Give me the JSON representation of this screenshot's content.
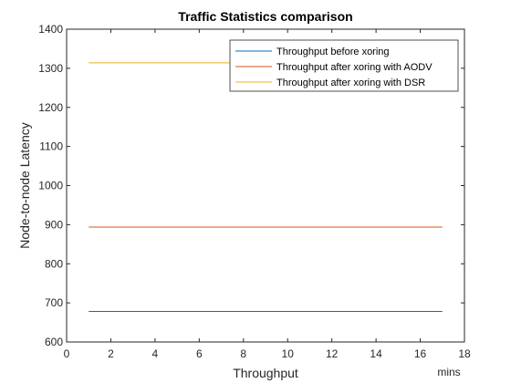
{
  "chart_data": {
    "type": "line",
    "title": "Traffic Statistics comparison",
    "xlabel": "Throughput",
    "ylabel": "Node-to-node Latency",
    "x_unit_label": "mins",
    "xlim": [
      0,
      18
    ],
    "ylim": [
      600,
      1400
    ],
    "xticks": [
      0,
      2,
      4,
      6,
      8,
      10,
      12,
      14,
      16,
      18
    ],
    "yticks": [
      600,
      700,
      800,
      900,
      1000,
      1100,
      1200,
      1300,
      1400
    ],
    "grid": false,
    "legend_position": "top-right",
    "series": [
      {
        "name": "Throughput before xoring",
        "color": "#0072BD",
        "x": [
          1,
          17
        ],
        "y": [
          678,
          678
        ]
      },
      {
        "name": "Throughput after xoring with AODV",
        "color": "#D95319",
        "x": [
          1,
          17
        ],
        "y": [
          894,
          894
        ]
      },
      {
        "name": "Throughput after xoring with DSR",
        "color": "#EDB120",
        "x": [
          1,
          17
        ],
        "y": [
          1314,
          1314
        ]
      }
    ]
  }
}
